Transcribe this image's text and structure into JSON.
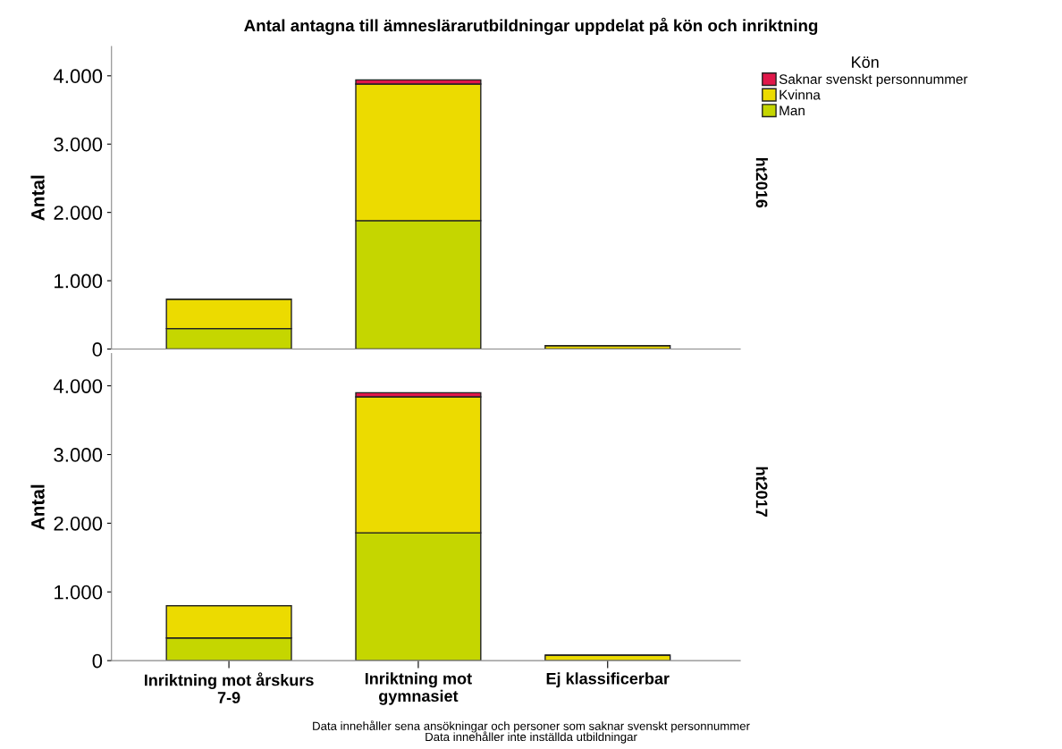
{
  "chart_data": [
    {
      "type": "bar",
      "title": "Antal antagna till ämneslärarutbildningar uppdelat på kön och inriktning",
      "ylabel": "Antal",
      "y2label": "ht2016",
      "legend_title": "Kön",
      "legend": "top right",
      "stacked": true,
      "grid": false,
      "tick_labels": "y",
      "categories": [
        null,
        null,
        null
      ],
      "series": [
        {
          "name": "Man",
          "color": "#c5d600",
          "values": [
            300,
            1880,
            null
          ]
        },
        {
          "name": "Kvinna",
          "color": "#ecdb00",
          "values": [
            430,
            2000,
            50
          ]
        },
        {
          "name": "Saknar svenskt personnummer",
          "color": "#e0174a",
          "values": [
            null,
            60,
            null
          ]
        }
      ],
      "ylim": [
        0,
        4430
      ],
      "yticks": [
        {
          "value": 0,
          "label": "0"
        },
        {
          "value": 1000,
          "label": "1.000"
        },
        {
          "value": 2000,
          "label": "2.000"
        },
        {
          "value": 3000,
          "label": "3.000"
        },
        {
          "value": 4000,
          "label": "4.000"
        }
      ]
    },
    {
      "type": "bar",
      "ylabel": "Antal",
      "y2label": "ht2017",
      "stacked": true,
      "grid": false,
      "categories": [
        "Inriktning mot årskurs\n7-9",
        "Inriktning mot\ngymnasiet",
        "Ej klassificerbar"
      ],
      "series": [
        {
          "color": "#c5d600",
          "values": [
            330,
            1860,
            null
          ]
        },
        {
          "color": "#ecdb00",
          "values": [
            470,
            1980,
            80
          ]
        },
        {
          "color": "#e0174a",
          "values": [
            null,
            60,
            null
          ]
        }
      ],
      "ylim": [
        0,
        4470
      ],
      "yticks": [
        {
          "value": 0,
          "label": "0"
        },
        {
          "value": 1000,
          "label": "1.000"
        },
        {
          "value": 2000,
          "label": "2.000"
        },
        {
          "value": 3000,
          "label": "3.000"
        },
        {
          "value": 4000,
          "label": "4.000"
        }
      ],
      "annotations": [
        "Data innehåller sena ansökningar och personer som saknar svenskt personnummer",
        "Data innehåller inte inställda utbildningar"
      ]
    }
  ]
}
